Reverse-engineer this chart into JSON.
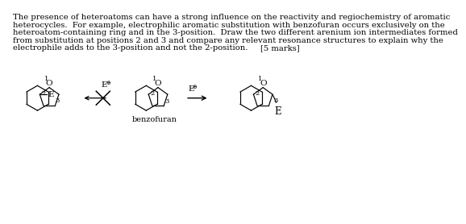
{
  "background_color": "#ffffff",
  "line1": "The presence of heteroatoms can have a strong influence on the reactivity and regiochemistry of aromatic",
  "line2": "heterocycles.  For example, electrophilic aromatic substitution with benzofuran occurs exclusively on the",
  "line3": "heteroatom-containing ring and in the 3-position.  Draw the two different arenium ion intermediates formed",
  "line4": "from substitution at positions 2 and 3 and compare any relevant resonance structures to explain why the",
  "line5": "electrophile adds to the 3-position and not the 2-position.",
  "marks_text": "[5 marks]",
  "benzofuran_label": "benzofuran",
  "font_size_text": 7.2,
  "font_size_label": 7.5,
  "font_size_small": 6.0,
  "font_size_subscript": 5.0
}
